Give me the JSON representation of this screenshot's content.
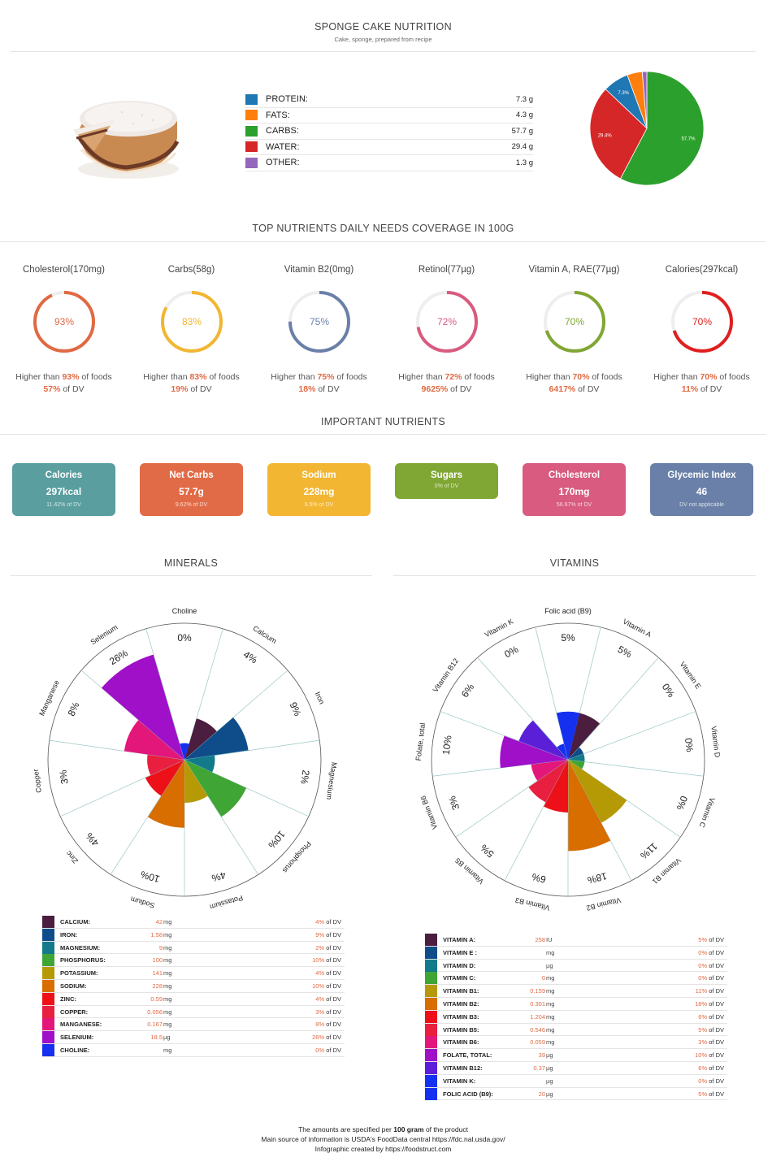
{
  "header": {
    "title": "SPONGE CAKE NUTRITION",
    "subtitle": "Cake, sponge, prepared from recipe"
  },
  "macros": [
    {
      "label": "PROTEIN:",
      "value": "7.3 g",
      "color": "#1f77b4"
    },
    {
      "label": "FATS:",
      "value": "4.3 g",
      "color": "#ff7f0e"
    },
    {
      "label": "CARBS:",
      "value": "57.7 g",
      "color": "#2ca02c"
    },
    {
      "label": "WATER:",
      "value": "29.4 g",
      "color": "#d62728"
    },
    {
      "label": "OTHER:",
      "value": "1.3 g",
      "color": "#9467bd"
    }
  ],
  "coverage_title": "TOP NUTRIENTS DAILY NEEDS COVERAGE IN 100G",
  "coverage": [
    {
      "name": "Cholesterol(170mg)",
      "pct": "93%",
      "value": 93,
      "color": "#e06a43",
      "higher_pre": "Higher than ",
      "higher": "93%",
      "higher_post": " of foods",
      "dv": "57%",
      "dv_post": " of DV"
    },
    {
      "name": "Carbs(58g)",
      "pct": "83%",
      "value": 83,
      "color": "#f2b632",
      "higher_pre": "Higher than ",
      "higher": "83%",
      "higher_post": " of foods",
      "dv": "19%",
      "dv_post": " of DV"
    },
    {
      "name": "Vitamin B2(0mg)",
      "pct": "75%",
      "value": 75,
      "color": "#6a80a8",
      "higher_pre": "Higher than ",
      "higher": "75%",
      "higher_post": " of foods",
      "dv": "18%",
      "dv_post": " of DV"
    },
    {
      "name": "Retinol(77µg)",
      "pct": "72%",
      "value": 72,
      "color": "#d95b7f",
      "higher_pre": "Higher than ",
      "higher": "72%",
      "higher_post": " of foods",
      "dv": "9625%",
      "dv_post": " of DV"
    },
    {
      "name": "Vitamin A, RAE(77µg)",
      "pct": "70%",
      "value": 70,
      "color": "#80a633",
      "higher_pre": "Higher than ",
      "higher": "70%",
      "higher_post": " of foods",
      "dv": "6417%",
      "dv_post": " of DV"
    },
    {
      "name": "Calories(297kcal)",
      "pct": "70%",
      "value": 70,
      "color": "#e01f1f",
      "higher_pre": "Higher than ",
      "higher": "70%",
      "higher_post": " of foods",
      "dv": "11%",
      "dv_post": " of DV"
    }
  ],
  "important_title": "IMPORTANT NUTRIENTS",
  "cards": [
    {
      "title": "Calories",
      "value": "297kcal",
      "dv": "11.42% of DV",
      "color": "#5a9ea0"
    },
    {
      "title": "Net Carbs",
      "value": "57.7g",
      "dv": "9.62% of DV",
      "color": "#e26b47"
    },
    {
      "title": "Sodium",
      "value": "228mg",
      "dv": "9.5% of DV",
      "color": "#f2b632"
    },
    {
      "title": "Sugars",
      "value": "",
      "dv": "0% of DV",
      "color": "#80a633"
    },
    {
      "title": "Cholesterol",
      "value": "170mg",
      "dv": "56.67% of DV",
      "color": "#d95b7f"
    },
    {
      "title": "Glycemic Index",
      "value": "46",
      "dv": "DV not applicable",
      "color": "#6a80a8"
    }
  ],
  "minerals_title": "MINERALS",
  "vitamins_title": "VITAMINS",
  "minerals": [
    {
      "label": "CALCIUM:",
      "short": "Calcium",
      "amount": "42",
      "unit": "mg",
      "dv": "4%",
      "value": 4,
      "color": "#4b1d3f"
    },
    {
      "label": "IRON:",
      "short": "Iron",
      "amount": "1.58",
      "unit": "mg",
      "dv": "9%",
      "value": 9,
      "color": "#0e4d8a"
    },
    {
      "label": "MAGNESIUM:",
      "short": "Magnesium",
      "amount": "9",
      "unit": "mg",
      "dv": "2%",
      "value": 2,
      "color": "#127a8a"
    },
    {
      "label": "PHOSPHORUS:",
      "short": "Phosphorus",
      "amount": "100",
      "unit": "mg",
      "dv": "10%",
      "value": 10,
      "color": "#3fa534"
    },
    {
      "label": "POTASSIUM:",
      "short": "Potassium",
      "amount": "141",
      "unit": "mg",
      "dv": "4%",
      "value": 4,
      "color": "#b59a06"
    },
    {
      "label": "SODIUM:",
      "short": "Sodium",
      "amount": "228",
      "unit": "mg",
      "dv": "10%",
      "value": 10,
      "color": "#d86d00"
    },
    {
      "label": "ZINC:",
      "short": "Zinc",
      "amount": "0.59",
      "unit": "mg",
      "dv": "4%",
      "value": 4,
      "color": "#ee1018"
    },
    {
      "label": "COPPER:",
      "short": "Copper",
      "amount": "0.056",
      "unit": "mg",
      "dv": "3%",
      "value": 3,
      "color": "#e81f3f"
    },
    {
      "label": "MANGANESE:",
      "short": "Manganese",
      "amount": "0.167",
      "unit": "mg",
      "dv": "8%",
      "value": 8,
      "color": "#e3177a"
    },
    {
      "label": "SELENIUM:",
      "short": "Selenium",
      "amount": "18.5",
      "unit": "µg",
      "dv": "26%",
      "value": 26,
      "color": "#a010c8"
    },
    {
      "label": "CHOLINE:",
      "short": "Choline",
      "amount": "",
      "unit": "mg",
      "dv": "0%",
      "value": 0,
      "color": "#1630f0"
    }
  ],
  "vitamins": [
    {
      "label": "VITAMIN A:",
      "short": "Vitamin A",
      "amount": "258",
      "unit": "IU",
      "dv": "5%",
      "value": 5,
      "color": "#4b1d3f"
    },
    {
      "label": "VITAMIN E :",
      "short": "Vitamin E",
      "amount": "",
      "unit": "mg",
      "dv": "0%",
      "value": 0,
      "color": "#0e4d8a"
    },
    {
      "label": "VITAMIN D:",
      "short": "Vitamin D",
      "amount": "",
      "unit": "µg",
      "dv": "0%",
      "value": 0,
      "color": "#127a8a"
    },
    {
      "label": "VITAMIN C:",
      "short": "Vitamin C",
      "amount": "0",
      "unit": "mg",
      "dv": "0%",
      "value": 0,
      "color": "#3fa534"
    },
    {
      "label": "VITAMIN B1:",
      "short": "Vitamin B1",
      "amount": "0.159",
      "unit": "mg",
      "dv": "11%",
      "value": 11,
      "color": "#b59a06"
    },
    {
      "label": "VITAMIN B2:",
      "short": "Vitamin B2",
      "amount": "0.301",
      "unit": "mg",
      "dv": "18%",
      "value": 18,
      "color": "#d86d00"
    },
    {
      "label": "VITAMIN B3:",
      "short": "Vitamin B3",
      "amount": "1.204",
      "unit": "mg",
      "dv": "6%",
      "value": 6,
      "color": "#ee1018"
    },
    {
      "label": "VITAMIN B5:",
      "short": "Vitamin B5",
      "amount": "0.546",
      "unit": "mg",
      "dv": "5%",
      "value": 5,
      "color": "#e81f3f"
    },
    {
      "label": "VITAMIN B6:",
      "short": "Vitamin B6",
      "amount": "0.059",
      "unit": "mg",
      "dv": "3%",
      "value": 3,
      "color": "#e3177a"
    },
    {
      "label": "FOLATE, TOTAL:",
      "short": "Folate, total",
      "amount": "39",
      "unit": "µg",
      "dv": "10%",
      "value": 10,
      "color": "#a010c8"
    },
    {
      "label": "VITAMIN B12:",
      "short": "Vitamin B12",
      "amount": "0.37",
      "unit": "µg",
      "dv": "6%",
      "value": 6,
      "color": "#5b1fd8"
    },
    {
      "label": "VITAMIN K:",
      "short": "Vitamin K",
      "amount": "",
      "unit": "µg",
      "dv": "0%",
      "value": 0,
      "color": "#1630f0"
    },
    {
      "label": "FOLIC ACID (B9):",
      "short": "Folic acid (B9)",
      "amount": "20",
      "unit": "µg",
      "dv": "5%",
      "value": 5,
      "color": "#1630f0"
    }
  ],
  "of_dv": "of DV",
  "footer": {
    "line1_pre": "The amounts are specified per ",
    "line1_bold": "100 gram",
    "line1_post": " of the product",
    "line2": "Main source of information is USDA's FoodData central https://fdc.nal.usda.gov/",
    "line3": "Infographic created by https://foodstruct.com"
  },
  "chart_data": [
    {
      "type": "pie",
      "categories": [
        "PROTEIN",
        "FATS",
        "CARBS",
        "WATER",
        "OTHER"
      ],
      "values": [
        7.3,
        4.3,
        57.7,
        29.4,
        1.3
      ],
      "slice_labels": [
        "7.3%",
        "",
        "57.7%",
        "29.4%",
        ""
      ],
      "colors": [
        "#1f77b4",
        "#ff7f0e",
        "#2ca02c",
        "#d62728",
        "#9467bd"
      ]
    },
    {
      "type": "polar-area",
      "title": "MINERALS",
      "categories": [
        "Calcium",
        "Iron",
        "Magnesium",
        "Phosphorus",
        "Potassium",
        "Sodium",
        "Zinc",
        "Copper",
        "Manganese",
        "Selenium",
        "Choline"
      ],
      "values": [
        4,
        9,
        2,
        10,
        4,
        10,
        4,
        3,
        8,
        26,
        0
      ],
      "unit": "% of DV"
    },
    {
      "type": "polar-area",
      "title": "VITAMINS",
      "categories": [
        "Vitamin A",
        "Vitamin E",
        "Vitamin D",
        "Vitamin C",
        "Vitamin B1",
        "Vitamin B2",
        "Vitamin B3",
        "Vitamin B5",
        "Vitamin B6",
        "Folate, total",
        "Vitamin B12",
        "Vitamin K",
        "Folic acid (B9)"
      ],
      "values": [
        5,
        0,
        0,
        0,
        11,
        18,
        6,
        5,
        3,
        10,
        6,
        0,
        5
      ],
      "unit": "% of DV"
    }
  ]
}
